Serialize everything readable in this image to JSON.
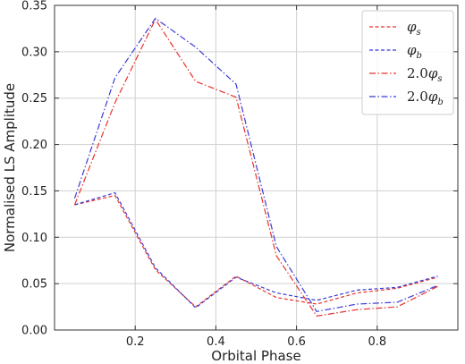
{
  "chart_data": {
    "type": "line",
    "title": "",
    "xlabel": "Orbital Phase",
    "ylabel": "Normalised LS Amplitude",
    "xlim": [
      0.0,
      1.0
    ],
    "ylim": [
      0.0,
      0.35
    ],
    "xticks": [
      0.2,
      0.4,
      0.6,
      0.8
    ],
    "xtick_labels": [
      "0.2",
      "0.4",
      "0.6",
      "0.8"
    ],
    "yticks": [
      0.0,
      0.05,
      0.1,
      0.15,
      0.2,
      0.25,
      0.3,
      0.35
    ],
    "ytick_labels": [
      "0.00",
      "0.05",
      "0.10",
      "0.15",
      "0.20",
      "0.25",
      "0.30",
      "0.35"
    ],
    "grid": true,
    "legend_position": "top-right",
    "x": [
      0.05,
      0.15,
      0.25,
      0.35,
      0.45,
      0.55,
      0.65,
      0.75,
      0.85,
      0.95
    ],
    "series": [
      {
        "legend_main": "φ",
        "legend_prefix": "",
        "legend_sub": "s",
        "color": "#e8322c",
        "style": "dashed",
        "values": [
          0.135,
          0.145,
          0.065,
          0.025,
          0.058,
          0.035,
          0.028,
          0.04,
          0.045,
          0.057
        ]
      },
      {
        "legend_main": "φ",
        "legend_prefix": "",
        "legend_sub": "b",
        "color": "#3b3bd6",
        "style": "dashed",
        "values": [
          0.135,
          0.148,
          0.067,
          0.024,
          0.057,
          0.04,
          0.032,
          0.043,
          0.046,
          0.058
        ]
      },
      {
        "legend_main": "φ",
        "legend_prefix": "2.0",
        "legend_sub": "s",
        "color": "#e8322c",
        "style": "dashdot",
        "values": [
          0.135,
          0.245,
          0.335,
          0.268,
          0.251,
          0.08,
          0.015,
          0.022,
          0.025,
          0.047
        ]
      },
      {
        "legend_main": "φ",
        "legend_prefix": "2.0",
        "legend_sub": "b",
        "color": "#3b3bd6",
        "style": "dashdot",
        "values": [
          0.142,
          0.272,
          0.336,
          0.305,
          0.265,
          0.09,
          0.02,
          0.028,
          0.03,
          0.048
        ]
      }
    ]
  }
}
